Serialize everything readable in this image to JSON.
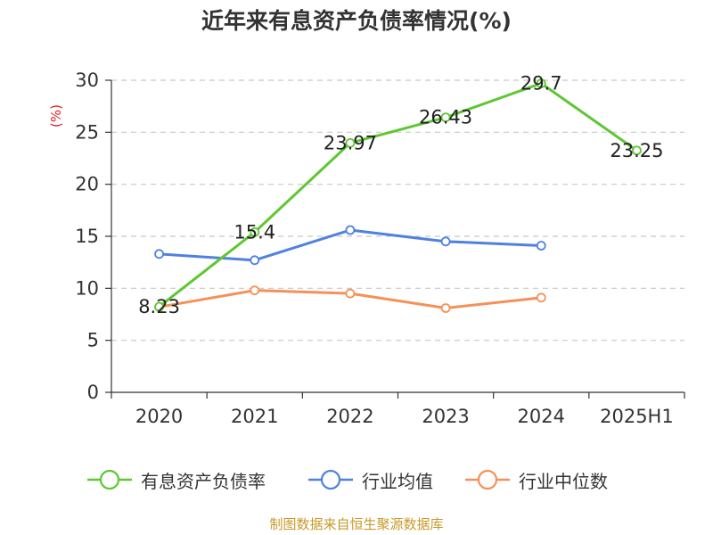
{
  "chart_data": {
    "type": "line",
    "title": "近年来有息资产负债率情况(%)",
    "ylabel": "(%)",
    "categories": [
      "2020",
      "2021",
      "2022",
      "2023",
      "2024",
      "2025H1"
    ],
    "y_ticks": [
      "0",
      "5",
      "10",
      "15",
      "20",
      "25",
      "30"
    ],
    "ylim": [
      0,
      30
    ],
    "grid": true,
    "legend_position": "bottom",
    "series": [
      {
        "name": "有息资产负债率",
        "color": "#5ec731",
        "values": [
          8.23,
          15.4,
          23.97,
          26.43,
          29.7,
          23.25
        ],
        "labels": [
          "8.23",
          "15.4",
          "23.97",
          "26.43",
          "29.7",
          "23.25"
        ]
      },
      {
        "name": "行业均值",
        "color": "#4f81e0",
        "values": [
          13.3,
          12.7,
          15.6,
          14.5,
          14.1,
          null
        ]
      },
      {
        "name": "行业中位数",
        "color": "#f59158",
        "values": [
          8.2,
          9.8,
          9.5,
          8.1,
          9.1,
          null
        ]
      }
    ]
  },
  "source_text": "制图数据来自恒生聚源数据库"
}
